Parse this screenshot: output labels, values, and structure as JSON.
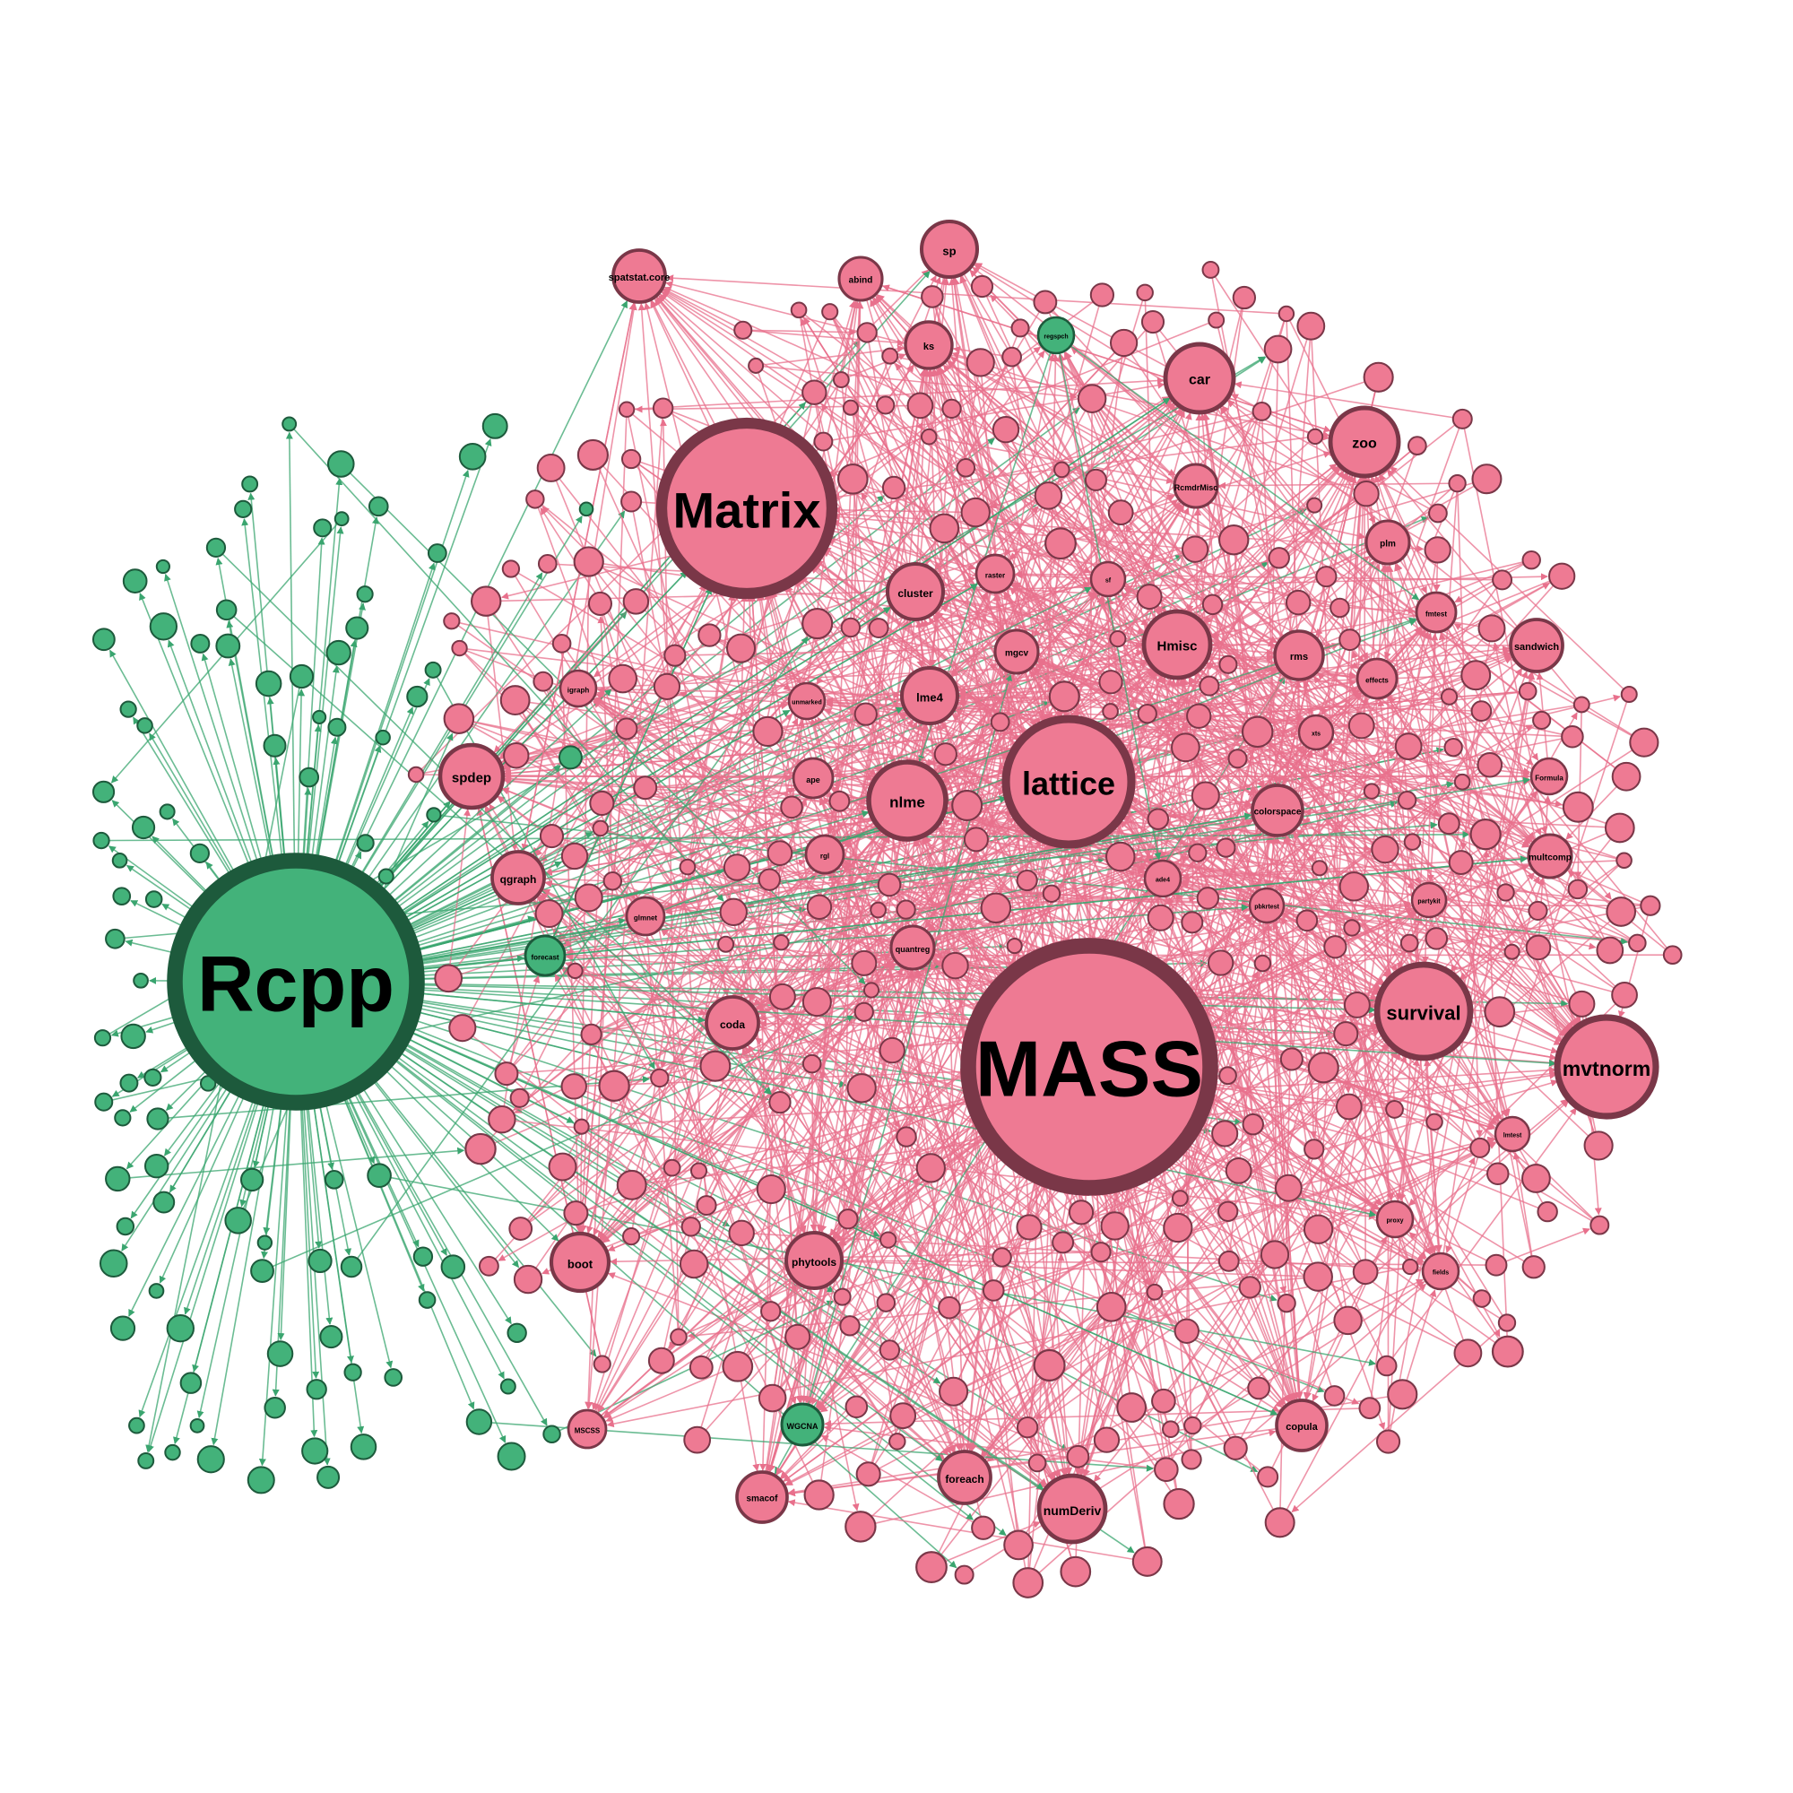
{
  "colors": {
    "pink_fill": "#ee7a93",
    "pink_stroke": "#7a3748",
    "pink_edge": "#e8708c",
    "green_fill": "#43b27a",
    "green_stroke": "#1d5a3c",
    "green_edge": "#3aa56f",
    "label": "#000000"
  },
  "hubs": [
    {
      "label": "Rcpp",
      "group": "green"
    },
    {
      "label": "MASS",
      "group": "pink"
    },
    {
      "label": "Matrix",
      "group": "pink"
    },
    {
      "label": "lattice",
      "group": "pink"
    },
    {
      "label": "mvtnorm",
      "group": "pink"
    },
    {
      "label": "survival",
      "group": "pink"
    },
    {
      "label": "nlme",
      "group": "pink"
    },
    {
      "label": "car",
      "group": "pink"
    },
    {
      "label": "zoo",
      "group": "pink"
    },
    {
      "label": "Hmisc",
      "group": "pink"
    },
    {
      "label": "spdep",
      "group": "pink"
    },
    {
      "label": "sp",
      "group": "pink"
    },
    {
      "label": "spatstat.core",
      "group": "pink"
    },
    {
      "label": "lme4",
      "group": "pink"
    },
    {
      "label": "cluster",
      "group": "pink"
    },
    {
      "label": "ks",
      "group": "pink"
    },
    {
      "label": "abind",
      "group": "pink"
    },
    {
      "label": "boot",
      "group": "pink"
    },
    {
      "label": "phytools",
      "group": "pink"
    },
    {
      "label": "foreach",
      "group": "pink"
    },
    {
      "label": "numDeriv",
      "group": "pink"
    },
    {
      "label": "copula",
      "group": "pink"
    },
    {
      "label": "smacof",
      "group": "pink"
    },
    {
      "label": "WGCNA",
      "group": "green"
    },
    {
      "label": "qgraph",
      "group": "pink"
    },
    {
      "label": "coda",
      "group": "pink"
    },
    {
      "label": "colorspace",
      "group": "pink"
    },
    {
      "label": "sandwich",
      "group": "pink"
    },
    {
      "label": "multcomp",
      "group": "pink"
    },
    {
      "label": "rms",
      "group": "pink"
    },
    {
      "label": "plm",
      "group": "pink"
    },
    {
      "label": "mgcv",
      "group": "pink"
    },
    {
      "label": "quantreg",
      "group": "pink"
    },
    {
      "label": "ape",
      "group": "pink"
    },
    {
      "label": "RcmdrMisc",
      "group": "pink"
    },
    {
      "label": "forecast",
      "group": "green"
    },
    {
      "label": "MSCSS",
      "group": "pink"
    },
    {
      "label": "Formula",
      "group": "pink"
    },
    {
      "label": "fmtest",
      "group": "pink"
    },
    {
      "label": "effects",
      "group": "pink"
    },
    {
      "label": "partykit",
      "group": "pink"
    },
    {
      "label": "regspch",
      "group": "green"
    },
    {
      "label": "unmarked",
      "group": "pink"
    },
    {
      "label": "xts",
      "group": "pink"
    },
    {
      "label": "pbkrtest",
      "group": "pink"
    },
    {
      "label": "raster",
      "group": "pink"
    },
    {
      "label": "igraph",
      "group": "pink"
    },
    {
      "label": "sf",
      "group": "pink"
    },
    {
      "label": "proxy",
      "group": "pink"
    },
    {
      "label": "rgl",
      "group": "pink"
    },
    {
      "label": "lmtest",
      "group": "pink"
    },
    {
      "label": "glmnet",
      "group": "pink"
    },
    {
      "label": "fields",
      "group": "pink"
    },
    {
      "label": "ade4",
      "group": "pink"
    }
  ]
}
